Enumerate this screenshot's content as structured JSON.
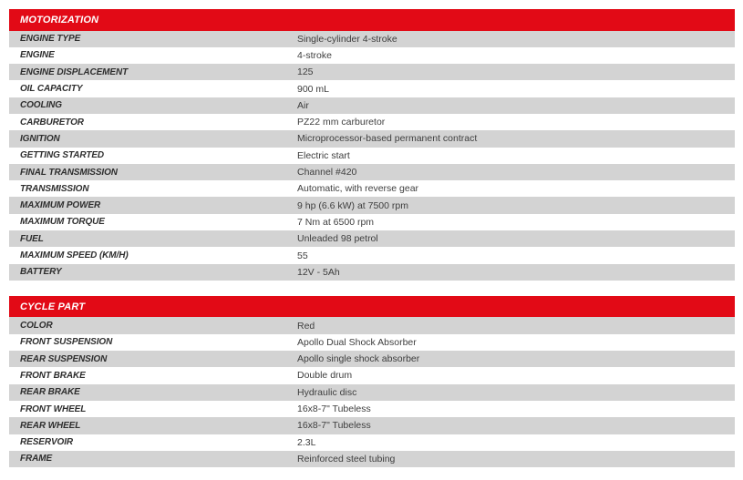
{
  "colors": {
    "header_bg": "#e20a16",
    "header_text": "#ffffff",
    "row_alt_bg": "#d3d3d3",
    "row_bg": "#ffffff",
    "label_text": "#2e2e2e",
    "value_text": "#3e3e3e",
    "page_bg": "#ffffff"
  },
  "tables": [
    {
      "title": "MOTORIZATION",
      "rows": [
        {
          "label": "ENGINE TYPE",
          "value": "Single-cylinder 4-stroke"
        },
        {
          "label": "ENGINE",
          "value": "4-stroke"
        },
        {
          "label": "ENGINE DISPLACEMENT",
          "value": "125"
        },
        {
          "label": "OIL CAPACITY",
          "value": "900 mL"
        },
        {
          "label": "COOLING",
          "value": "Air"
        },
        {
          "label": "CARBURETOR",
          "value": "PZ22 mm carburetor"
        },
        {
          "label": "IGNITION",
          "value": "Microprocessor-based permanent contract"
        },
        {
          "label": "GETTING STARTED",
          "value": "Electric start"
        },
        {
          "label": "FINAL TRANSMISSION",
          "value": "Channel #420"
        },
        {
          "label": "TRANSMISSION",
          "value": "Automatic, with reverse gear"
        },
        {
          "label": "MAXIMUM POWER",
          "value": "9 hp (6.6 kW) at 7500 rpm"
        },
        {
          "label": "MAXIMUM TORQUE",
          "value": "7 Nm at 6500 rpm"
        },
        {
          "label": "FUEL",
          "value": "Unleaded 98 petrol"
        },
        {
          "label": "MAXIMUM SPEED (KM/H)",
          "value": "55"
        },
        {
          "label": "BATTERY",
          "value": "12V - 5Ah"
        }
      ]
    },
    {
      "title": "CYCLE PART",
      "rows": [
        {
          "label": "COLOR",
          "value": "Red"
        },
        {
          "label": "FRONT SUSPENSION",
          "value": "Apollo Dual Shock Absorber"
        },
        {
          "label": "REAR SUSPENSION",
          "value": "Apollo single shock absorber"
        },
        {
          "label": "FRONT BRAKE",
          "value": "Double drum"
        },
        {
          "label": "REAR BRAKE",
          "value": "Hydraulic disc"
        },
        {
          "label": "FRONT WHEEL",
          "value": "16x8-7\" Tubeless"
        },
        {
          "label": "REAR WHEEL",
          "value": "16x8-7\" Tubeless"
        },
        {
          "label": "RESERVOIR",
          "value": "2.3L"
        },
        {
          "label": "FRAME",
          "value": "Reinforced steel tubing"
        }
      ]
    }
  ]
}
